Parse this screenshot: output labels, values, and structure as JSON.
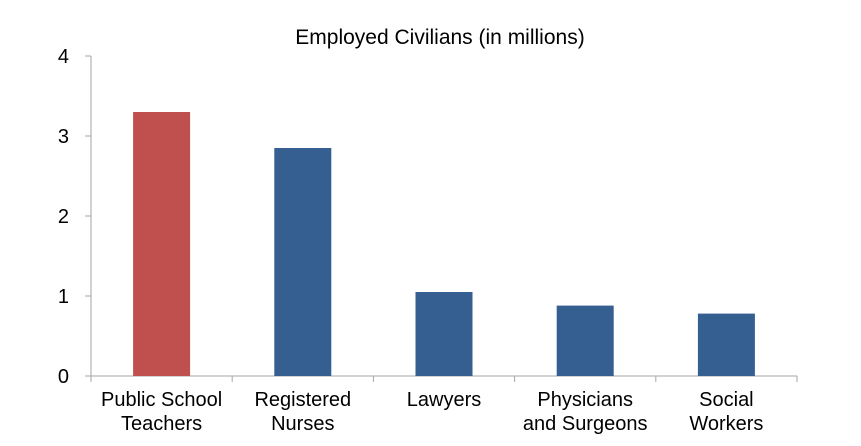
{
  "chart_data": {
    "type": "bar",
    "title": "Employed Civilians (in millions)",
    "xlabel": "",
    "ylabel": "",
    "categories": [
      [
        "Public School",
        "Teachers"
      ],
      [
        "Registered",
        "Nurses"
      ],
      [
        "Lawyers"
      ],
      [
        "Physicians",
        "and Surgeons"
      ],
      [
        "Social",
        "Workers"
      ]
    ],
    "values": [
      3.3,
      2.85,
      1.05,
      0.88,
      0.78
    ],
    "colors": [
      "#c0504d",
      "#355e91",
      "#355e91",
      "#355e91",
      "#355e91"
    ],
    "ylim": [
      0,
      4
    ],
    "yticks": [
      "0",
      "1",
      "2",
      "3",
      "4"
    ],
    "grid": false,
    "legend": "none"
  }
}
